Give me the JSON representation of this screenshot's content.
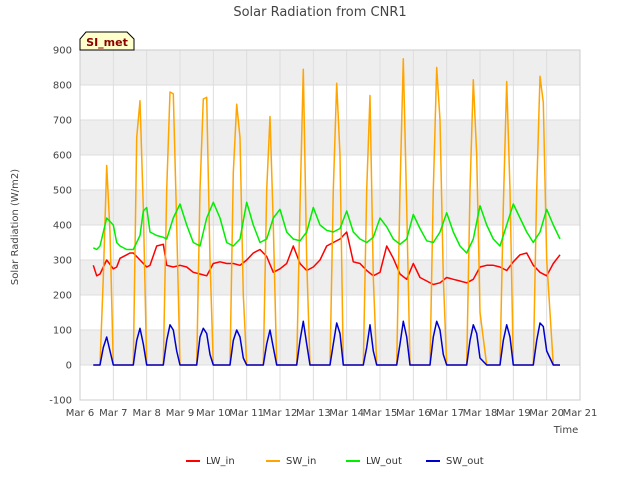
{
  "chart_data": {
    "type": "line",
    "title": "Solar Radiation from CNR1",
    "xlabel": "Time",
    "ylabel": "Solar Radiation (W/m2)",
    "badge": "SI_met",
    "ylim": [
      -100,
      900
    ],
    "xlim": [
      6,
      21
    ],
    "yticks": [
      -100,
      0,
      100,
      200,
      300,
      400,
      500,
      600,
      700,
      800,
      900
    ],
    "xticks": [
      {
        "x": 6,
        "label": "Mar 6"
      },
      {
        "x": 7,
        "label": "Mar 7"
      },
      {
        "x": 8,
        "label": "Mar 8"
      },
      {
        "x": 9,
        "label": "Mar 9"
      },
      {
        "x": 10,
        "label": "Mar 10"
      },
      {
        "x": 11,
        "label": "Mar 11"
      },
      {
        "x": 12,
        "label": "Mar 12"
      },
      {
        "x": 13,
        "label": "Mar 13"
      },
      {
        "x": 14,
        "label": "Mar 14"
      },
      {
        "x": 15,
        "label": "Mar 15"
      },
      {
        "x": 16,
        "label": "Mar 16"
      },
      {
        "x": 17,
        "label": "Mar 17"
      },
      {
        "x": 18,
        "label": "Mar 18"
      },
      {
        "x": 19,
        "label": "Mar 19"
      },
      {
        "x": 20,
        "label": "Mar 20"
      },
      {
        "x": 21,
        "label": "Mar 21"
      }
    ],
    "grid": true,
    "legend_position": "bottom",
    "series": [
      {
        "name": "LW_in",
        "color": "#ff0000",
        "x": [
          6.4,
          6.5,
          6.6,
          6.8,
          7.0,
          7.1,
          7.2,
          7.4,
          7.5,
          7.6,
          7.8,
          8.0,
          8.1,
          8.3,
          8.5,
          8.6,
          8.8,
          9.0,
          9.2,
          9.4,
          9.6,
          9.8,
          10.0,
          10.2,
          10.4,
          10.6,
          10.8,
          11.0,
          11.2,
          11.4,
          11.6,
          11.8,
          12.0,
          12.2,
          12.4,
          12.6,
          12.8,
          13.0,
          13.2,
          13.4,
          13.6,
          13.8,
          14.0,
          14.2,
          14.4,
          14.6,
          14.8,
          15.0,
          15.2,
          15.4,
          15.6,
          15.8,
          16.0,
          16.2,
          16.4,
          16.6,
          16.8,
          17.0,
          17.2,
          17.4,
          17.6,
          17.8,
          18.0,
          18.2,
          18.4,
          18.6,
          18.8,
          19.0,
          19.2,
          19.4,
          19.6,
          19.8,
          20.0,
          20.2,
          20.4
        ],
        "y": [
          285,
          255,
          260,
          300,
          275,
          280,
          305,
          315,
          320,
          320,
          300,
          280,
          285,
          340,
          345,
          285,
          280,
          285,
          280,
          265,
          260,
          255,
          290,
          295,
          290,
          290,
          285,
          300,
          320,
          330,
          310,
          265,
          275,
          290,
          340,
          290,
          270,
          280,
          300,
          340,
          350,
          360,
          380,
          295,
          290,
          270,
          255,
          265,
          340,
          305,
          260,
          245,
          290,
          250,
          240,
          230,
          235,
          250,
          245,
          240,
          235,
          245,
          280,
          285,
          285,
          280,
          270,
          295,
          315,
          320,
          285,
          265,
          255,
          290,
          315
        ],
        "y_end": 250
      },
      {
        "name": "SW_in",
        "color": "#ffa500",
        "x": [
          6.4,
          6.6,
          6.7,
          6.8,
          6.9,
          7.0,
          7.1,
          7.2,
          7.4,
          7.6,
          7.7,
          7.8,
          7.9,
          8.0,
          8.1,
          8.3,
          8.5,
          8.6,
          8.7,
          8.8,
          8.9,
          9.0,
          9.2,
          9.5,
          9.6,
          9.7,
          9.8,
          9.9,
          10.0,
          10.2,
          10.5,
          10.6,
          10.7,
          10.8,
          10.9,
          11.0,
          11.2,
          11.5,
          11.6,
          11.7,
          11.8,
          11.9,
          12.0,
          12.2,
          12.5,
          12.6,
          12.7,
          12.8,
          12.9,
          13.0,
          13.2,
          13.5,
          13.6,
          13.7,
          13.8,
          13.9,
          14.0,
          14.2,
          14.5,
          14.6,
          14.7,
          14.8,
          14.9,
          15.0,
          15.2,
          15.5,
          15.6,
          15.7,
          15.8,
          15.9,
          16.0,
          16.2,
          16.5,
          16.6,
          16.7,
          16.8,
          16.9,
          17.0,
          17.2,
          17.5,
          17.6,
          17.7,
          17.8,
          17.9,
          18.0,
          18.2,
          18.5,
          18.6,
          18.7,
          18.8,
          18.9,
          19.0,
          19.2,
          19.5,
          19.6,
          19.7,
          19.8,
          19.9,
          20.0,
          20.2,
          20.4
        ],
        "y": [
          0,
          0,
          250,
          570,
          380,
          0,
          0,
          0,
          0,
          0,
          650,
          755,
          450,
          0,
          0,
          0,
          0,
          500,
          780,
          775,
          400,
          0,
          0,
          0,
          500,
          760,
          765,
          300,
          0,
          0,
          0,
          550,
          745,
          650,
          200,
          0,
          0,
          0,
          500,
          710,
          400,
          0,
          0,
          0,
          0,
          450,
          845,
          300,
          0,
          0,
          0,
          0,
          500,
          805,
          600,
          0,
          0,
          0,
          0,
          500,
          770,
          250,
          0,
          0,
          0,
          0,
          500,
          875,
          450,
          0,
          0,
          0,
          0,
          500,
          850,
          700,
          250,
          0,
          0,
          0,
          0,
          500,
          815,
          600,
          150,
          0,
          0,
          0,
          450,
          810,
          500,
          0,
          0,
          0,
          0,
          500,
          825,
          750,
          300,
          0,
          0
        ]
      },
      {
        "name": "LW_out",
        "color": "#00ee00",
        "x": [
          6.4,
          6.5,
          6.6,
          6.8,
          7.0,
          7.1,
          7.2,
          7.4,
          7.6,
          7.8,
          7.9,
          8.0,
          8.1,
          8.3,
          8.5,
          8.6,
          8.8,
          9.0,
          9.2,
          9.4,
          9.6,
          9.8,
          10.0,
          10.2,
          10.4,
          10.6,
          10.8,
          11.0,
          11.2,
          11.4,
          11.6,
          11.8,
          12.0,
          12.2,
          12.4,
          12.6,
          12.8,
          13.0,
          13.2,
          13.4,
          13.6,
          13.8,
          14.0,
          14.2,
          14.4,
          14.6,
          14.8,
          15.0,
          15.2,
          15.4,
          15.6,
          15.8,
          16.0,
          16.2,
          16.4,
          16.6,
          16.8,
          17.0,
          17.2,
          17.4,
          17.6,
          17.8,
          18.0,
          18.2,
          18.4,
          18.6,
          18.8,
          19.0,
          19.2,
          19.4,
          19.6,
          19.8,
          20.0,
          20.2,
          20.4
        ],
        "y": [
          335,
          330,
          340,
          420,
          400,
          350,
          340,
          330,
          330,
          370,
          440,
          450,
          380,
          370,
          365,
          360,
          420,
          460,
          400,
          350,
          340,
          420,
          465,
          420,
          350,
          340,
          360,
          465,
          400,
          350,
          360,
          420,
          445,
          380,
          360,
          355,
          380,
          450,
          400,
          385,
          380,
          390,
          440,
          380,
          360,
          350,
          365,
          420,
          395,
          360,
          345,
          360,
          430,
          390,
          355,
          350,
          380,
          435,
          380,
          340,
          320,
          360,
          455,
          400,
          360,
          340,
          400,
          460,
          420,
          380,
          350,
          380,
          445,
          400,
          360
        ]
      },
      {
        "name": "SW_out",
        "color": "#0000cc",
        "x": [
          6.4,
          6.6,
          6.7,
          6.8,
          6.9,
          7.0,
          7.1,
          7.2,
          7.4,
          7.6,
          7.7,
          7.8,
          7.9,
          8.0,
          8.1,
          8.3,
          8.5,
          8.6,
          8.7,
          8.8,
          8.9,
          9.0,
          9.2,
          9.5,
          9.6,
          9.7,
          9.8,
          9.9,
          10.0,
          10.2,
          10.5,
          10.6,
          10.7,
          10.8,
          10.9,
          11.0,
          11.2,
          11.5,
          11.6,
          11.7,
          11.8,
          11.9,
          12.0,
          12.2,
          12.5,
          12.6,
          12.7,
          12.8,
          12.9,
          13.0,
          13.2,
          13.5,
          13.6,
          13.7,
          13.8,
          13.9,
          14.0,
          14.2,
          14.5,
          14.6,
          14.7,
          14.8,
          14.9,
          15.0,
          15.2,
          15.5,
          15.6,
          15.7,
          15.8,
          15.9,
          16.0,
          16.2,
          16.5,
          16.6,
          16.7,
          16.8,
          16.9,
          17.0,
          17.2,
          17.5,
          17.6,
          17.7,
          17.8,
          17.9,
          18.0,
          18.2,
          18.5,
          18.6,
          18.7,
          18.8,
          18.9,
          19.0,
          19.2,
          19.5,
          19.6,
          19.7,
          19.8,
          19.9,
          20.0,
          20.2,
          20.4
        ],
        "y": [
          0,
          0,
          50,
          80,
          40,
          0,
          0,
          0,
          0,
          0,
          70,
          105,
          60,
          0,
          0,
          0,
          0,
          70,
          115,
          100,
          40,
          0,
          0,
          0,
          80,
          105,
          90,
          30,
          0,
          0,
          0,
          70,
          100,
          80,
          20,
          0,
          0,
          0,
          60,
          100,
          50,
          0,
          0,
          0,
          0,
          70,
          125,
          60,
          0,
          0,
          0,
          0,
          60,
          120,
          90,
          0,
          0,
          0,
          0,
          50,
          115,
          40,
          0,
          0,
          0,
          0,
          60,
          125,
          80,
          0,
          0,
          0,
          0,
          80,
          125,
          100,
          30,
          0,
          0,
          0,
          0,
          70,
          115,
          90,
          20,
          0,
          0,
          0,
          70,
          115,
          80,
          0,
          0,
          0,
          0,
          70,
          120,
          110,
          40,
          0,
          0
        ]
      }
    ]
  }
}
